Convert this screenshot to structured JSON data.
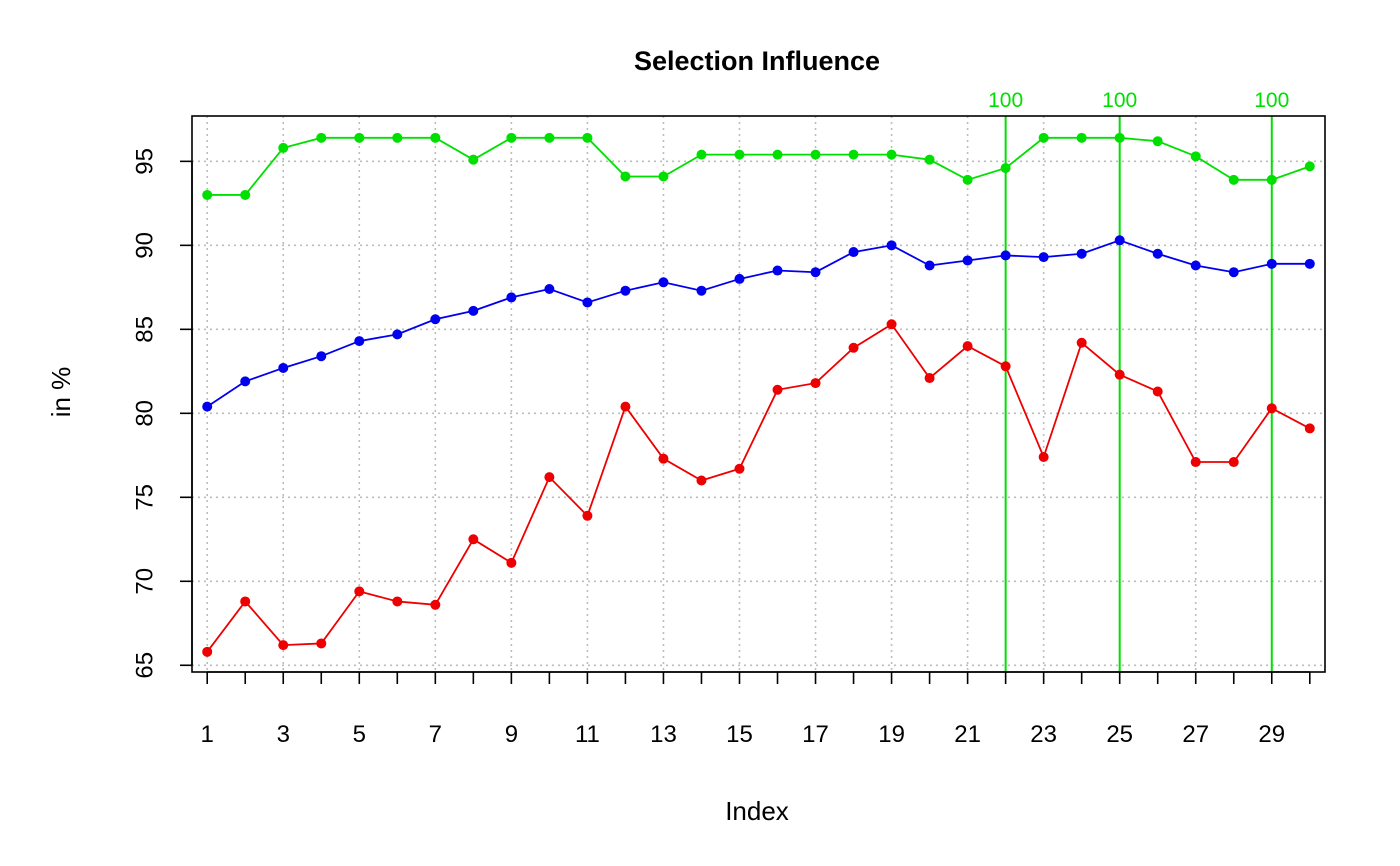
{
  "chart_data": {
    "type": "line",
    "title": "Selection Influence",
    "xlabel": "Index",
    "ylabel": "in %",
    "xlim": [
      0.6,
      30.4
    ],
    "ylim": [
      64.6,
      97.7
    ],
    "grid": true,
    "x": [
      1,
      2,
      3,
      4,
      5,
      6,
      7,
      8,
      9,
      10,
      11,
      12,
      13,
      14,
      15,
      16,
      17,
      18,
      19,
      20,
      21,
      22,
      23,
      24,
      25,
      26,
      27,
      28,
      29,
      30
    ],
    "x_ticks": [
      1,
      2,
      3,
      4,
      5,
      6,
      7,
      8,
      9,
      10,
      11,
      12,
      13,
      14,
      15,
      16,
      17,
      18,
      19,
      20,
      21,
      22,
      23,
      24,
      25,
      26,
      27,
      28,
      29,
      30
    ],
    "x_tick_labels": [
      "1",
      "",
      "3",
      "",
      "5",
      "",
      "7",
      "",
      "9",
      "",
      "11",
      "",
      "13",
      "",
      "15",
      "",
      "17",
      "",
      "19",
      "",
      "21",
      "",
      "23",
      "",
      "25",
      "",
      "27",
      "",
      "29",
      ""
    ],
    "y_ticks": [
      65,
      70,
      75,
      80,
      85,
      90,
      95
    ],
    "y_tick_labels": [
      "65",
      "70",
      "75",
      "80",
      "85",
      "90",
      "95"
    ],
    "series": [
      {
        "color": "#00e000",
        "values": [
          93.0,
          93.0,
          95.8,
          96.4,
          96.4,
          96.4,
          96.4,
          95.1,
          96.4,
          96.4,
          96.4,
          94.1,
          94.1,
          95.4,
          95.4,
          95.4,
          95.4,
          95.4,
          95.4,
          95.1,
          93.9,
          94.6,
          96.4,
          96.4,
          96.4,
          96.2,
          95.3,
          93.9,
          93.9,
          94.7
        ]
      },
      {
        "color": "#0000ee",
        "values": [
          80.4,
          81.9,
          82.7,
          83.4,
          84.3,
          84.7,
          85.6,
          86.1,
          86.9,
          87.4,
          86.6,
          87.3,
          87.8,
          87.3,
          88.0,
          88.5,
          88.4,
          89.6,
          90.0,
          88.8,
          89.1,
          89.4,
          89.3,
          89.5,
          90.3,
          89.5,
          88.8,
          88.4,
          88.9,
          88.9
        ]
      },
      {
        "color": "#ee0000",
        "values": [
          65.8,
          68.8,
          66.2,
          66.3,
          69.4,
          68.8,
          68.6,
          72.5,
          71.1,
          76.2,
          73.9,
          80.4,
          77.3,
          76.0,
          76.7,
          81.4,
          81.8,
          83.9,
          85.3,
          82.1,
          84.0,
          82.8,
          77.4,
          84.2,
          82.3,
          81.3,
          77.1,
          77.1,
          80.3,
          79.1
        ]
      }
    ],
    "vlines": [
      {
        "x": 22,
        "label": "100",
        "color": "#00e000"
      },
      {
        "x": 25,
        "label": "100",
        "color": "#00e000"
      },
      {
        "x": 29,
        "label": "100",
        "color": "#00e000"
      }
    ]
  }
}
